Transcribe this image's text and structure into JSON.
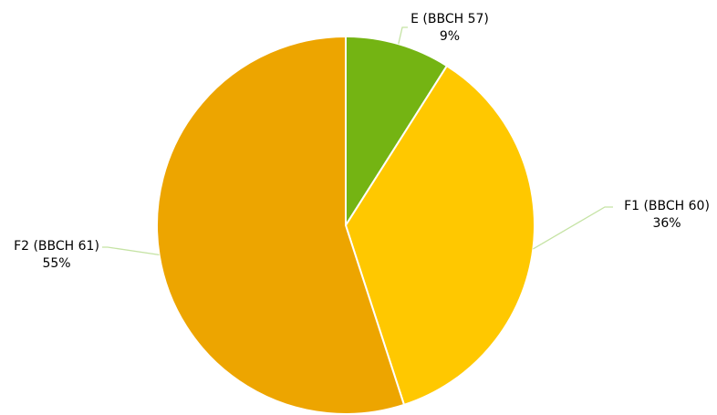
{
  "chart_data": {
    "type": "pie",
    "slices": [
      {
        "label": "E (BBCH 57)",
        "value": 9,
        "value_label": "9%",
        "color": "#74b413"
      },
      {
        "label": "F1 (BBCH 60)",
        "value": 36,
        "value_label": "36%",
        "color": "#ffc800"
      },
      {
        "label": "F2 (BBCH 61)",
        "value": 55,
        "value_label": "55%",
        "color": "#eda500"
      }
    ],
    "start_angle": "12 o'clock",
    "direction": "clockwise",
    "leader_line_color": "#c5e3a4",
    "slice_border_color": "#ffffff"
  }
}
